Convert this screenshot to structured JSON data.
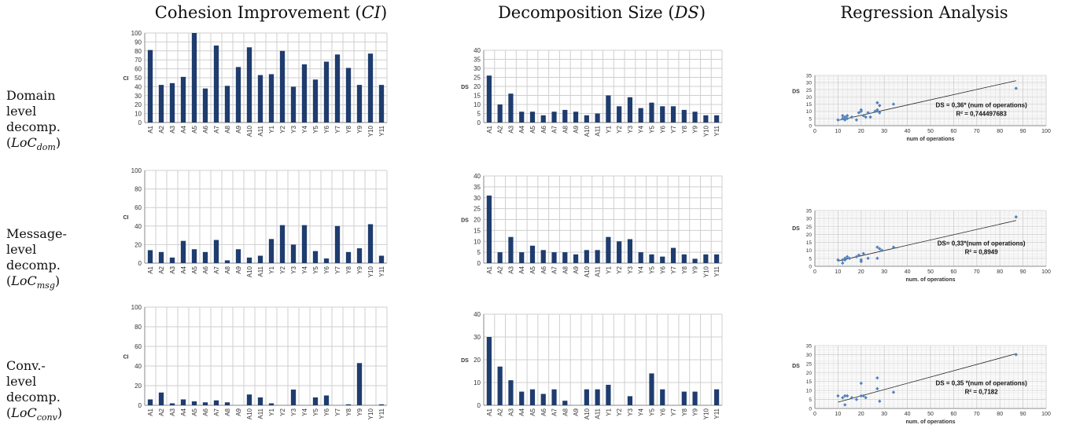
{
  "headers": {
    "ci": {
      "text": "Cohesion Improvement (",
      "sym": "CI",
      "close": ")"
    },
    "ds": {
      "text": "Decomposition Size (",
      "sym": "DS",
      "close": ")"
    },
    "reg": {
      "text": "Regression Analysis"
    }
  },
  "rows": [
    {
      "l1": "Domain",
      "l2": "level",
      "l3": "decomp.",
      "loc_base": "LoC",
      "loc_sub": "dom"
    },
    {
      "l1": "Message-",
      "l2": "level",
      "l3": "decomp.",
      "loc_base": "LoC",
      "loc_sub": "msg"
    },
    {
      "l1": "Conv.-",
      "l2": "level",
      "l3": "decomp.",
      "loc_base": "LoC",
      "loc_sub": "conv"
    }
  ],
  "colors": {
    "bar": "#1f3c6e",
    "grid": "#cfcfcf",
    "point": "#4f81bd",
    "trend": "#222222"
  },
  "chart_data": [
    {
      "id": "ci-dom",
      "type": "bar",
      "ylabel": "CI",
      "ylim": [
        0,
        100
      ],
      "yticks": [
        0,
        10,
        20,
        30,
        40,
        50,
        60,
        70,
        80,
        90,
        100
      ],
      "categories": [
        "A1",
        "A2",
        "A3",
        "A4",
        "A5",
        "A6",
        "A7",
        "A8",
        "A9",
        "A10",
        "A11",
        "Y1",
        "Y2",
        "Y3",
        "Y4",
        "Y5",
        "Y6",
        "Y7",
        "Y8",
        "Y9",
        "Y10",
        "Y11"
      ],
      "values": [
        81,
        42,
        44,
        51,
        100,
        38,
        86,
        41,
        62,
        84,
        53,
        54,
        80,
        40,
        65,
        48,
        68,
        76,
        61,
        42,
        77,
        42
      ],
      "grid": true
    },
    {
      "id": "ds-dom",
      "type": "bar",
      "ylabel": "DS",
      "ylim": [
        0,
        40
      ],
      "yticks": [
        0,
        5,
        10,
        15,
        20,
        25,
        30,
        35,
        40
      ],
      "categories": [
        "A1",
        "A2",
        "A3",
        "A4",
        "A5",
        "A6",
        "A7",
        "A8",
        "A9",
        "A10",
        "A11",
        "Y1",
        "Y2",
        "Y3",
        "Y4",
        "Y5",
        "Y6",
        "Y7",
        "Y8",
        "Y9",
        "Y10",
        "Y11"
      ],
      "values": [
        26,
        10,
        16,
        6,
        6,
        4,
        6,
        7,
        6,
        4,
        5,
        15,
        9,
        14,
        8,
        11,
        9,
        9,
        7,
        6,
        4,
        4
      ],
      "grid": true
    },
    {
      "id": "reg-dom",
      "type": "scatter",
      "ylabel": "DS",
      "xlabel": "num of operations",
      "xlim": [
        0,
        100
      ],
      "ylim": [
        0,
        35
      ],
      "xticks": [
        0,
        10,
        20,
        30,
        40,
        50,
        60,
        70,
        80,
        90,
        100
      ],
      "yticks": [
        0,
        5,
        10,
        15,
        20,
        25,
        30,
        35
      ],
      "points": [
        [
          10,
          4
        ],
        [
          12,
          5
        ],
        [
          12,
          7
        ],
        [
          13,
          6
        ],
        [
          13,
          4
        ],
        [
          14,
          5
        ],
        [
          14,
          7
        ],
        [
          16,
          6
        ],
        [
          18,
          4
        ],
        [
          19,
          9
        ],
        [
          20,
          10
        ],
        [
          20,
          11
        ],
        [
          21,
          7
        ],
        [
          22,
          6
        ],
        [
          23,
          9
        ],
        [
          24,
          6
        ],
        [
          26,
          10
        ],
        [
          27,
          16
        ],
        [
          27,
          11
        ],
        [
          28,
          14
        ],
        [
          28,
          9
        ],
        [
          34,
          15
        ],
        [
          87,
          26
        ]
      ],
      "trend": {
        "slope": 0.36,
        "x_range": [
          10,
          87
        ]
      },
      "annotations": [
        "DS = 0,36* (num of operations)",
        "R² = 0,744497683"
      ],
      "grid": true
    },
    {
      "id": "ci-msg",
      "type": "bar",
      "ylabel": "CI",
      "ylim": [
        0,
        100
      ],
      "yticks": [
        0,
        20,
        40,
        60,
        80,
        100
      ],
      "categories": [
        "A1",
        "A2",
        "A3",
        "A4",
        "A5",
        "A6",
        "A7",
        "A8",
        "A9",
        "A10",
        "A11",
        "Y1",
        "Y2",
        "Y3",
        "Y4",
        "Y5",
        "Y6",
        "Y7",
        "Y8",
        "Y9",
        "Y10",
        "Y11"
      ],
      "values": [
        14,
        12,
        6,
        24,
        15,
        12,
        25,
        3,
        15,
        6,
        8,
        26,
        41,
        20,
        41,
        13,
        5,
        40,
        12,
        16,
        42,
        8
      ],
      "grid": true
    },
    {
      "id": "ds-msg",
      "type": "bar",
      "ylabel": "DS",
      "ylim": [
        0,
        40
      ],
      "yticks": [
        0,
        5,
        10,
        15,
        20,
        25,
        30,
        35,
        40
      ],
      "categories": [
        "A1",
        "A2",
        "A3",
        "A4",
        "A5",
        "A6",
        "A7",
        "A8",
        "A9",
        "A10",
        "A11",
        "Y1",
        "Y2",
        "Y3",
        "Y4",
        "Y5",
        "Y6",
        "Y7",
        "Y8",
        "Y9",
        "Y10",
        "Y11"
      ],
      "values": [
        31,
        5,
        12,
        5,
        8,
        6,
        5,
        5,
        4,
        6,
        6,
        12,
        10,
        11,
        5,
        4,
        3,
        7,
        4,
        2,
        4,
        4
      ],
      "grid": true
    },
    {
      "id": "reg-msg",
      "type": "scatter",
      "ylabel": "DS",
      "xlabel": "num. of operations",
      "xlim": [
        0,
        100
      ],
      "ylim": [
        0,
        35
      ],
      "xticks": [
        0,
        10,
        20,
        30,
        40,
        50,
        60,
        70,
        80,
        90,
        100
      ],
      "yticks": [
        0,
        5,
        10,
        15,
        20,
        25,
        30,
        35
      ],
      "points": [
        [
          10,
          4
        ],
        [
          12,
          4
        ],
        [
          12,
          2
        ],
        [
          13,
          4
        ],
        [
          13,
          5
        ],
        [
          14,
          6
        ],
        [
          15,
          5
        ],
        [
          18,
          6
        ],
        [
          19,
          7
        ],
        [
          20,
          4
        ],
        [
          20,
          3
        ],
        [
          21,
          8
        ],
        [
          23,
          5
        ],
        [
          27,
          12
        ],
        [
          27,
          5
        ],
        [
          28,
          11
        ],
        [
          29,
          10
        ],
        [
          34,
          12
        ],
        [
          87,
          31
        ]
      ],
      "trend": {
        "slope": 0.33,
        "x_range": [
          10,
          87
        ]
      },
      "annotations": [
        "DS= 0,33*(num of operations)",
        "R² = 0,8949"
      ],
      "grid": true
    },
    {
      "id": "ci-conv",
      "type": "bar",
      "ylabel": "CI",
      "ylim": [
        0,
        100
      ],
      "yticks": [
        0,
        20,
        40,
        60,
        80,
        100
      ],
      "categories": [
        "A1",
        "A2",
        "A3",
        "A4",
        "A5",
        "A6",
        "A7",
        "A8",
        "A9",
        "A10",
        "A11",
        "Y1",
        "Y2",
        "Y3",
        "Y4",
        "Y5",
        "Y6",
        "Y7",
        "Y8",
        "Y9",
        "Y10",
        "Y11"
      ],
      "values": [
        6,
        13,
        2,
        6,
        4,
        3,
        5,
        3,
        0,
        11,
        8,
        2,
        0,
        16,
        0,
        8,
        10,
        0,
        1,
        43,
        0,
        1
      ],
      "grid": true
    },
    {
      "id": "ds-conv",
      "type": "bar",
      "ylabel": "DS",
      "ylim": [
        0,
        40
      ],
      "yticks": [
        0,
        10,
        20,
        30,
        40
      ],
      "categories": [
        "A1",
        "A2",
        "A3",
        "A4",
        "A5",
        "A6",
        "A7",
        "A8",
        "A9",
        "A10",
        "A11",
        "Y1",
        "Y2",
        "Y3",
        "Y4",
        "Y5",
        "Y6",
        "Y7",
        "Y8",
        "Y9",
        "Y10",
        "Y11"
      ],
      "values": [
        30,
        17,
        11,
        6,
        7,
        5,
        7,
        2,
        0,
        7,
        7,
        9,
        0,
        4,
        0,
        14,
        7,
        0,
        6,
        6,
        0,
        7
      ],
      "grid": true
    },
    {
      "id": "reg-conv",
      "type": "scatter",
      "ylabel": "DS",
      "xlabel": "num. of operations",
      "xlim": [
        0,
        100
      ],
      "ylim": [
        0,
        35
      ],
      "xticks": [
        0,
        10,
        20,
        30,
        40,
        50,
        60,
        70,
        80,
        90,
        100
      ],
      "yticks": [
        0,
        5,
        10,
        15,
        20,
        25,
        30,
        35
      ],
      "points": [
        [
          10,
          7
        ],
        [
          12,
          6
        ],
        [
          13,
          2
        ],
        [
          13,
          7
        ],
        [
          14,
          7
        ],
        [
          16,
          6
        ],
        [
          18,
          5
        ],
        [
          20,
          14
        ],
        [
          20,
          7
        ],
        [
          21,
          7
        ],
        [
          22,
          6
        ],
        [
          27,
          17
        ],
        [
          27,
          11
        ],
        [
          28,
          4
        ],
        [
          34,
          9
        ],
        [
          87,
          30
        ]
      ],
      "trend": {
        "slope": 0.35,
        "x_range": [
          10,
          87
        ]
      },
      "annotations": [
        "DS = 0,35 *(num of operations)",
        "R² = 0,7182"
      ],
      "grid": true
    }
  ]
}
